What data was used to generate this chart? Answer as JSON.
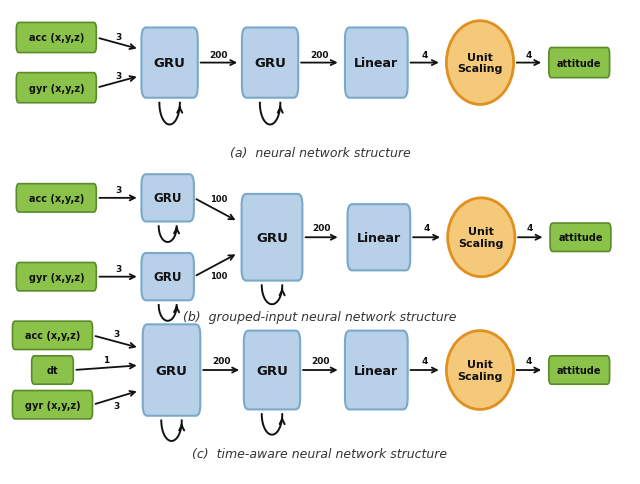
{
  "bg_color": "#ffffff",
  "green_box_color": "#8bc34a",
  "green_box_edge": "#5a8a2a",
  "blue_box_color": "#b8d0e8",
  "blue_box_edge": "#7aaac8",
  "orange_ellipse_color": "#f5c97a",
  "orange_ellipse_edge": "#e09020",
  "arrow_color": "#111111",
  "text_color": "#111111",
  "caption_color": "#333333",
  "diagram_a_caption": "(a)  neural network structure",
  "diagram_b_caption": "(b)  grouped-input neural network structure",
  "diagram_c_caption": "(c)  time-aware neural network structure"
}
